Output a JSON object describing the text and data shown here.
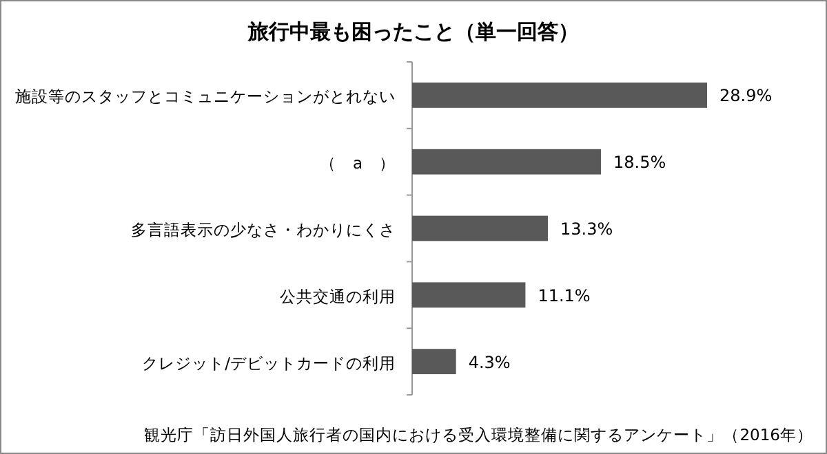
{
  "chart_data": {
    "type": "bar",
    "orientation": "horizontal",
    "title": "旅行中最も困ったこと（単一回答）",
    "categories": [
      "施設等のスタッフとコミュニケーションがとれない",
      "（　a　）",
      "多言語表示の少なさ・わかりにくさ",
      "公共交通の利用",
      "クレジット/デビットカードの利用"
    ],
    "values": [
      28.9,
      18.5,
      13.3,
      11.1,
      4.3
    ],
    "value_labels": [
      "28.9%",
      "18.5%",
      "13.3%",
      "11.1%",
      "4.3%"
    ],
    "color": "#595959",
    "annotations": [
      "観光庁「訪日外国人旅行者の国内における受入環境整備に関するアンケート」（2016年）"
    ]
  }
}
